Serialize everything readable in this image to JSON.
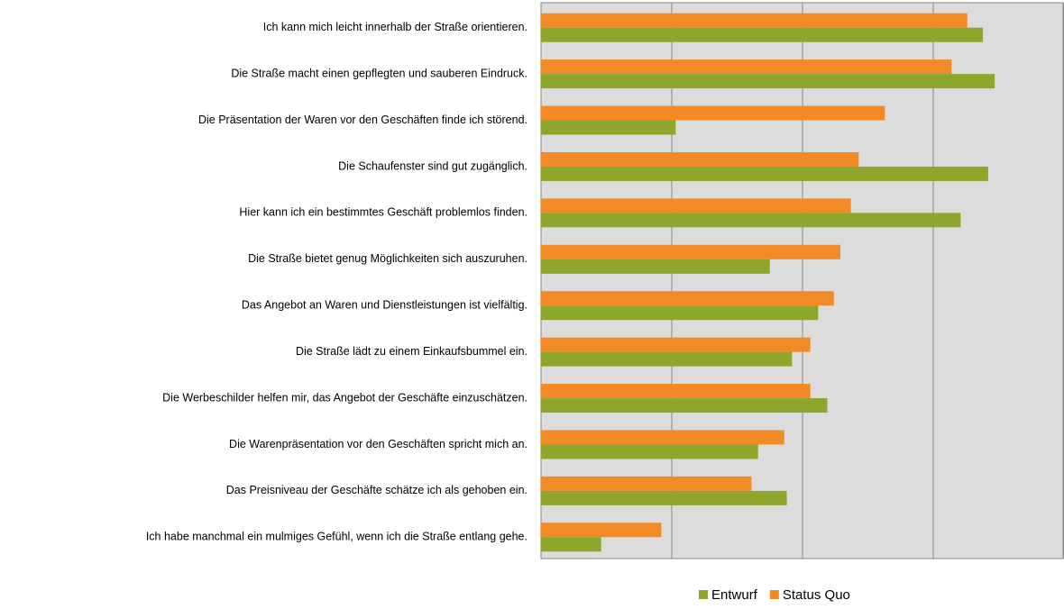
{
  "chart_data": {
    "type": "hbar",
    "categories": [
      "Ich kann mich leicht innerhalb der Straße orientieren.",
      "Die Straße macht einen gepflegten und sauberen Eindruck.",
      "Die Präsentation der Waren vor den Geschäften finde ich störend.",
      "Die Schaufenster sind gut zugänglich.",
      "Hier kann ich ein bestimmtes Geschäft problemlos finden.",
      "Die Straße bietet genug Möglichkeiten sich auszuruhen.",
      "Das Angebot an Waren und Dienstleistungen ist vielfältig.",
      "Die Straße lädt zu einem Einkaufsbummel ein.",
      "Die Werbeschilder helfen mir, das Angebot der Geschäfte einzuschätzen.",
      "Die Warenpräsentation vor den Geschäften spricht mich an.",
      "Das Preisniveau der Geschäfte schätze ich als gehoben ein.",
      "Ich habe manchmal ein mulmiges Gefühl, wenn ich die Straße entlang gehe."
    ],
    "series": [
      {
        "name": "Entwurf",
        "color": "#8fa62c",
        "values": [
          3.38,
          3.47,
          1.03,
          3.42,
          3.21,
          1.75,
          2.12,
          1.92,
          2.19,
          1.66,
          1.88,
          0.46
        ]
      },
      {
        "name": "Status Quo",
        "color": "#f28b26",
        "values": [
          3.26,
          3.14,
          2.63,
          2.43,
          2.37,
          2.29,
          2.24,
          2.06,
          2.06,
          1.86,
          1.61,
          0.92
        ]
      }
    ],
    "xlim": [
      0,
      4
    ],
    "xticks": [
      0,
      1,
      2,
      3,
      4
    ],
    "grid": true,
    "legend": "bottom"
  }
}
